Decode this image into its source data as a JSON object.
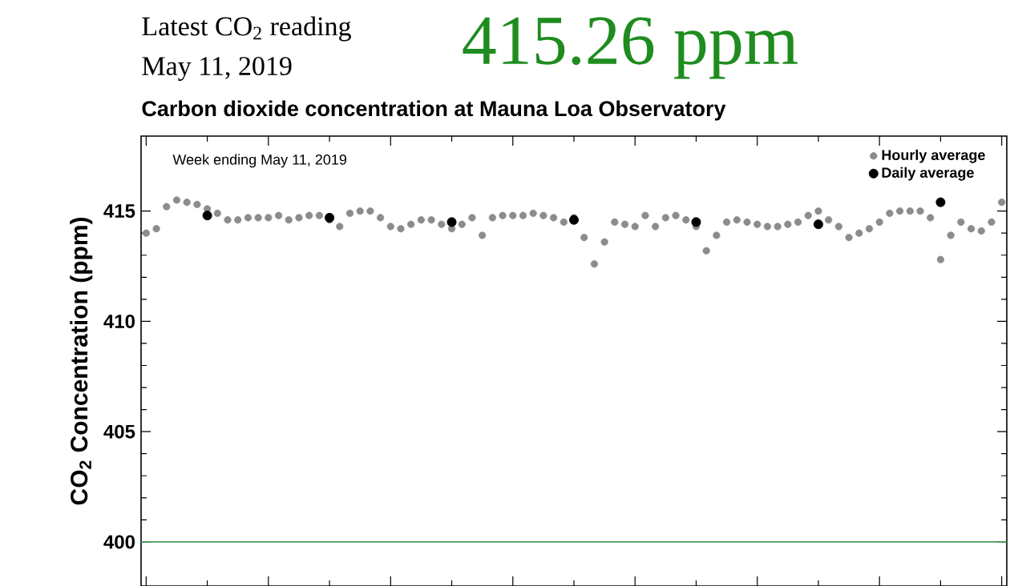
{
  "chart_data": {
    "type": "scatter",
    "title": "Carbon dioxide concentration at Mauna Loa Observatory",
    "ylabel": "CO$_{2}$ Concentration (ppm)",
    "annotations": [
      "Latest CO$_{2}$ reading",
      "May 11, 2019",
      "415.26 ppm",
      "Week ending May 11, 2019"
    ],
    "categories": [
      null,
      null,
      null,
      null,
      null,
      null,
      null,
      null,
      null,
      null,
      null,
      null,
      null,
      null,
      null,
      null,
      null,
      null,
      null,
      null,
      null,
      null,
      null,
      null,
      null,
      null,
      null,
      null,
      null,
      null,
      null,
      null,
      null,
      null,
      null,
      null,
      null,
      null,
      null,
      null,
      null,
      null,
      null,
      null,
      null,
      null,
      null,
      null,
      null,
      null,
      null,
      null,
      null,
      null,
      null,
      null,
      null,
      null,
      null,
      null,
      null,
      null,
      null,
      null,
      null,
      null,
      null,
      null,
      null,
      null,
      null,
      null,
      null,
      null,
      null,
      null,
      null,
      null,
      null,
      null,
      null,
      null,
      null,
      null,
      null
    ],
    "ylim": [
      398,
      418.4
    ],
    "yticks": [
      400,
      405,
      410,
      415
    ],
    "legend": "top right",
    "ref_lines": [
      {
        "axis": "y",
        "value": 400,
        "color": "#4c9a5c"
      }
    ],
    "series": [
      {
        "name": "Hourly average",
        "color": "#8c8c8c",
        "values": [
          414.0,
          414.2,
          415.2,
          415.5,
          415.4,
          415.3,
          415.1,
          414.9,
          414.6,
          414.6,
          414.7,
          414.7,
          414.7,
          414.8,
          414.6,
          414.7,
          414.8,
          414.8,
          414.6,
          414.3,
          414.9,
          415.0,
          415.0,
          414.7,
          414.3,
          414.2,
          414.4,
          414.6,
          414.6,
          414.4,
          414.2,
          414.4,
          414.7,
          413.9,
          414.7,
          414.8,
          414.8,
          414.8,
          414.9,
          414.8,
          414.7,
          414.5,
          414.7,
          413.8,
          412.6,
          413.6,
          414.5,
          414.4,
          414.3,
          414.8,
          414.3,
          414.7,
          414.8,
          414.6,
          414.3,
          413.2,
          413.9,
          414.5,
          414.6,
          414.5,
          414.4,
          414.3,
          414.3,
          414.4,
          414.5,
          414.8,
          415.0,
          414.6,
          414.3,
          413.8,
          414.0,
          414.2,
          414.5,
          414.9,
          415.0,
          415.0,
          415.0,
          414.7,
          412.8,
          413.9,
          414.5,
          414.2,
          414.1,
          414.5,
          415.4
        ]
      },
      {
        "name": "Daily average",
        "color": "#000000",
        "values": [
          null,
          null,
          null,
          null,
          null,
          null,
          414.8,
          null,
          null,
          null,
          null,
          null,
          null,
          null,
          null,
          null,
          null,
          null,
          414.7,
          null,
          null,
          null,
          null,
          null,
          null,
          null,
          null,
          null,
          null,
          null,
          414.5,
          null,
          null,
          null,
          null,
          null,
          null,
          null,
          null,
          null,
          null,
          null,
          414.6,
          null,
          null,
          null,
          null,
          null,
          null,
          null,
          null,
          null,
          null,
          null,
          414.5,
          null,
          null,
          null,
          null,
          null,
          null,
          null,
          null,
          null,
          null,
          null,
          414.4,
          null,
          null,
          null,
          null,
          null,
          null,
          null,
          null,
          null,
          null,
          null,
          415.4,
          null,
          null,
          null,
          null,
          null,
          null
        ]
      }
    ]
  }
}
